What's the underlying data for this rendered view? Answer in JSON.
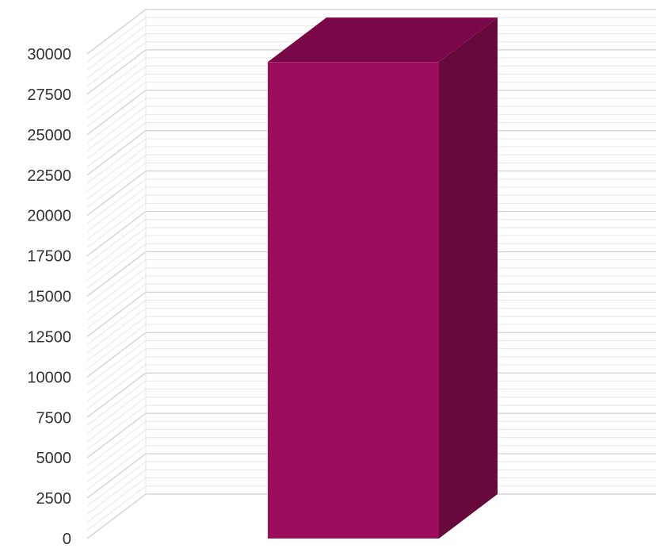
{
  "chart_data": {
    "type": "bar",
    "style": "3d-column",
    "categories": [
      ""
    ],
    "values": [
      29500
    ],
    "ylim": [
      0,
      30000
    ],
    "y_ticks": [
      0,
      2500,
      5000,
      7500,
      10000,
      12500,
      15000,
      17500,
      20000,
      22500,
      25000,
      27500,
      30000
    ],
    "grid": true,
    "legend": "none",
    "xlabel": "",
    "ylabel": "",
    "title": "",
    "colors": {
      "bar_front": "#9e0c5c",
      "bar_top": "#7a0747",
      "bar_side": "#68093d",
      "grid_major": "#cfcfcf",
      "grid_minor": "#e6e6e6",
      "tick_text": "#333333"
    }
  }
}
